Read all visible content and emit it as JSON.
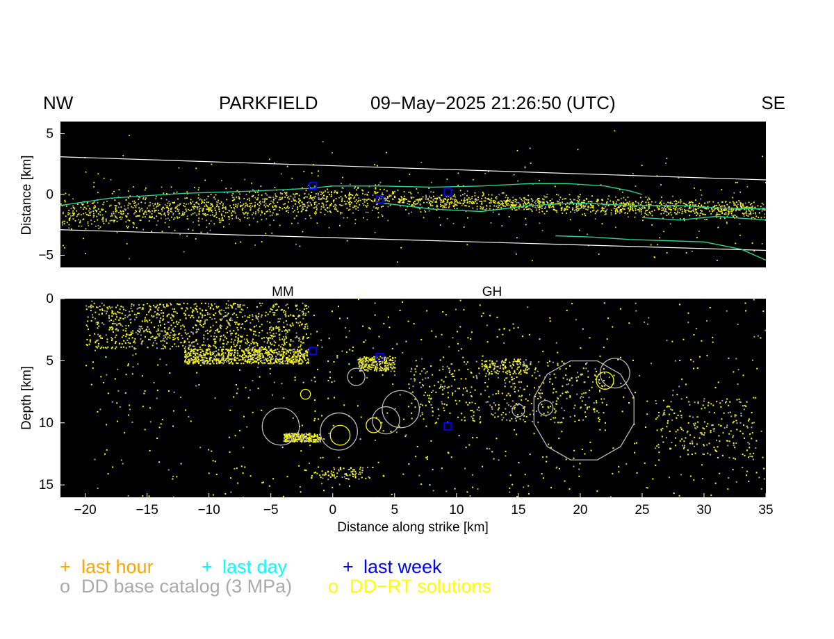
{
  "header": {
    "left": "NW",
    "title": "PARKFIELD",
    "datetime": "09−May−2025  21:26:50 (UTC)",
    "right": "SE"
  },
  "chart_data": [
    {
      "type": "scatter",
      "panel": "map view",
      "ylabel": "Distance [km]",
      "xlim": [
        -22,
        35
      ],
      "ylim": [
        -6,
        6
      ],
      "yticks": [
        "5",
        "0",
        "−5"
      ],
      "background": "#000000",
      "boundary_lines": [
        {
          "x": [
            -22,
            35
          ],
          "y": [
            3.1,
            1.2
          ],
          "color": "#ffffff"
        },
        {
          "x": [
            -22,
            35
          ],
          "y": [
            -2.9,
            -4.6
          ],
          "color": "#ffffff"
        }
      ],
      "fault_traces": [
        {
          "color": "#22d39a",
          "x": [
            -22,
            -18,
            -12,
            -6,
            -2,
            0,
            4,
            8,
            12,
            16,
            19,
            22,
            24,
            25
          ],
          "y": [
            -0.9,
            -0.3,
            0.1,
            0.3,
            0.5,
            0.7,
            0.7,
            0.6,
            0.7,
            0.9,
            0.9,
            0.7,
            0.3,
            0.0
          ]
        },
        {
          "color": "#22d39a",
          "x": [
            4,
            8,
            12,
            16,
            20,
            24,
            28,
            31,
            35
          ],
          "y": [
            -0.7,
            -1.2,
            -1.4,
            -0.9,
            -0.7,
            -0.9,
            -0.9,
            -1.1,
            -1.2
          ]
        },
        {
          "color": "#22d39a",
          "x": [
            25,
            28,
            31,
            35
          ],
          "y": [
            -1.9,
            -2.1,
            -1.8,
            -2.1
          ]
        },
        {
          "color": "#22d39a",
          "x": [
            18,
            21,
            24,
            27,
            30,
            33,
            35
          ],
          "y": [
            -3.4,
            -3.5,
            -3.7,
            -3.8,
            -3.9,
            -4.5,
            -5.4
          ]
        }
      ],
      "week_markers": [
        {
          "x": -1.6,
          "y": 0.7
        },
        {
          "x": 3.8,
          "y": -0.4
        },
        {
          "x": 9.3,
          "y": 0.2
        }
      ]
    },
    {
      "type": "scatter",
      "panel": "cross section",
      "xlabel": "Distance along strike [km]",
      "ylabel": "Depth [km]",
      "xlim": [
        -22,
        35
      ],
      "ylim": [
        16,
        0
      ],
      "xticks": [
        "−20",
        "−15",
        "−10",
        "−5",
        "0",
        "5",
        "10",
        "15",
        "20",
        "25",
        "30",
        "35"
      ],
      "yticks": [
        "0",
        "5",
        "10",
        "15"
      ],
      "annotations": [
        {
          "text": "MM",
          "x": -4
        },
        {
          "text": "GH",
          "x": 12.7
        }
      ],
      "large_events": [
        {
          "x": 20.3,
          "y": 9.0,
          "r": 4.5,
          "color": "#bbbbbb"
        },
        {
          "x": -4.2,
          "y": 10.3,
          "r": 1.5,
          "color": "#bbbbbb"
        },
        {
          "x": 0.5,
          "y": 10.7,
          "r": 1.5,
          "color": "#bbbbbb"
        },
        {
          "x": 5.5,
          "y": 8.9,
          "r": 1.5,
          "color": "#bbbbbb"
        },
        {
          "x": 4.3,
          "y": 9.8,
          "r": 1.1,
          "color": "#bbbbbb"
        },
        {
          "x": 22.8,
          "y": 6.0,
          "r": 1.2,
          "color": "#bbbbbb"
        },
        {
          "x": 1.9,
          "y": 6.3,
          "r": 0.7,
          "color": "#bbbbbb"
        },
        {
          "x": 17.2,
          "y": 8.8,
          "r": 0.6,
          "color": "#bbbbbb"
        },
        {
          "x": 15.0,
          "y": 9.0,
          "r": 0.5,
          "color": "#bbbbbb"
        },
        {
          "x": 0.6,
          "y": 11.0,
          "r": 0.8,
          "color": "#ffff00"
        },
        {
          "x": 22.0,
          "y": 6.6,
          "r": 0.7,
          "color": "#ffff00"
        },
        {
          "x": 3.3,
          "y": 10.2,
          "r": 0.6,
          "color": "#ffff00"
        },
        {
          "x": -2.2,
          "y": 7.7,
          "r": 0.4,
          "color": "#ffff00"
        }
      ],
      "week_markers": [
        {
          "x": -1.6,
          "y": 4.2
        },
        {
          "x": 3.8,
          "y": 4.7
        },
        {
          "x": 9.3,
          "y": 10.3
        }
      ]
    }
  ],
  "legend": [
    {
      "symbol": "+",
      "label": "last hour",
      "color": "#ffa500"
    },
    {
      "symbol": "+",
      "label": "last day",
      "color": "#00ffff"
    },
    {
      "symbol": "+",
      "label": "last week",
      "color": "#0000ff"
    },
    {
      "symbol": "o",
      "label": "DD base catalog (3 MPa)",
      "color": "#aaaaaa"
    },
    {
      "symbol": "o",
      "label": "DD−RT solutions",
      "color": "#ffff00"
    }
  ]
}
